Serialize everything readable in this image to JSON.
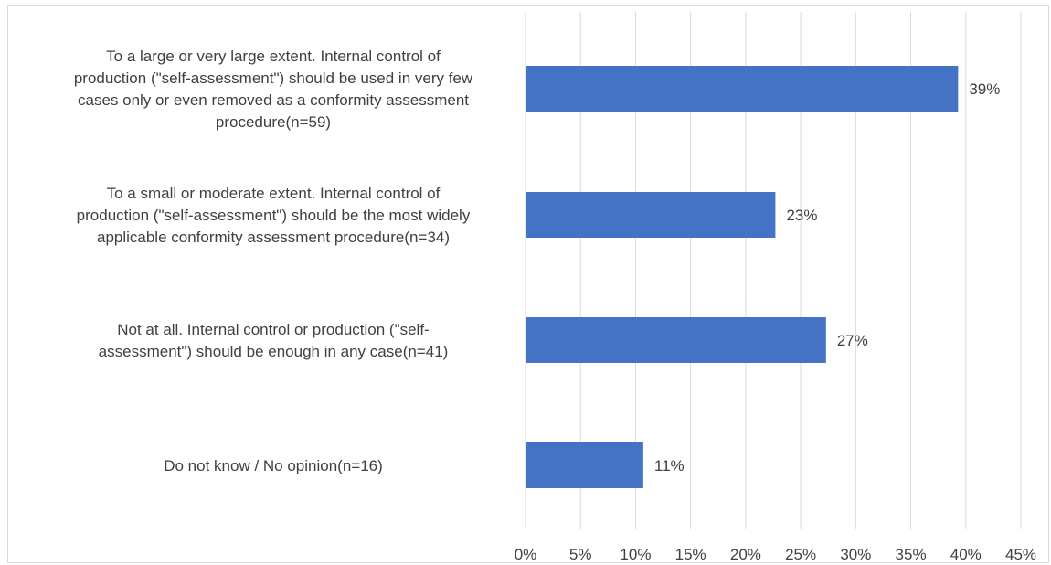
{
  "chart_data": {
    "type": "bar",
    "orientation": "horizontal",
    "categories": [
      [
        "To a large or very large extent. Internal control of",
        "production (\"self-assessment\") should be used in very few",
        "cases only or even removed as a conformity assessment",
        "procedure(n=59)"
      ],
      [
        "To a small or moderate extent. Internal control of",
        "production (\"self-assessment\") should be the most widely",
        "applicable conformity assessment procedure(n=34)"
      ],
      [
        "Not at all. Internal control or production (\"self-",
        "assessment\") should be enough in any case(n=41)"
      ],
      [
        "Do not know / No opinion(n=16)"
      ]
    ],
    "values": [
      39.3,
      22.7,
      27.3,
      10.7
    ],
    "data_labels": [
      "39%",
      "23%",
      "27%",
      "11%"
    ],
    "xlim": [
      0,
      45
    ],
    "x_ticks": [
      0,
      5,
      10,
      15,
      20,
      25,
      30,
      35,
      40,
      45
    ],
    "x_tick_labels": [
      "0%",
      "5%",
      "10%",
      "15%",
      "20%",
      "25%",
      "30%",
      "35%",
      "40%",
      "45%"
    ],
    "grid": true,
    "bar_color": "#4472c4",
    "grid_color": "#d9d9d9"
  }
}
